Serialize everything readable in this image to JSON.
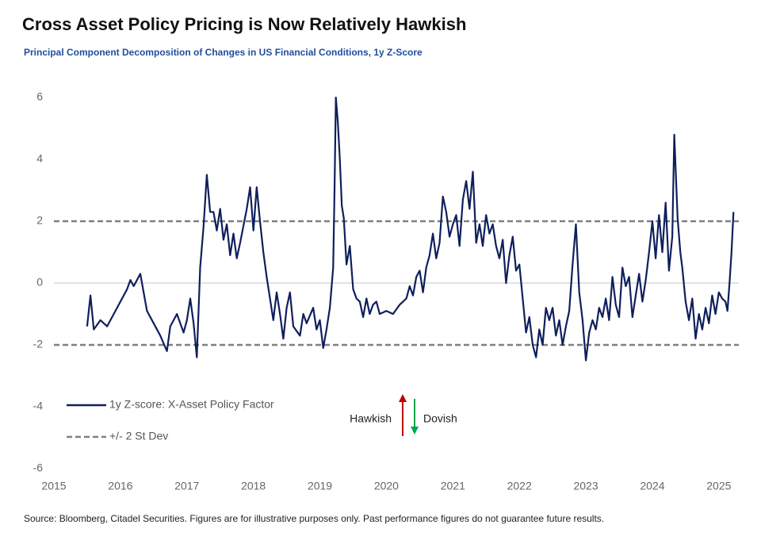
{
  "chart_data": {
    "type": "line",
    "title": "Cross Asset Policy Pricing is Now Relatively Hawkish",
    "subtitle": "Principal Component Decomposition of Changes in US Financial Conditions, 1y Z-Score",
    "source": "Source: Bloomberg, Citadel Securities. Figures are for illustrative purposes only. Past performance figures do not guarantee future results.",
    "annotations": [
      "Hawkish",
      "Dovish"
    ],
    "xlim": [
      2015,
      2025.3
    ],
    "xticks": [
      2015,
      2016,
      2017,
      2018,
      2019,
      2020,
      2021,
      2022,
      2023,
      2024,
      2025
    ],
    "ylim": [
      -6,
      6
    ],
    "yticks": [
      -6,
      -4,
      -2,
      0,
      2,
      4,
      6
    ],
    "reference_lines": {
      "name": "+/- 2 St Dev",
      "color": "#808080",
      "values": [
        2,
        -2
      ]
    },
    "x": [
      2015.5,
      2015.55,
      2015.6,
      2015.7,
      2015.8,
      2015.9,
      2016.0,
      2016.1,
      2016.15,
      2016.2,
      2016.3,
      2016.4,
      2016.5,
      2016.6,
      2016.7,
      2016.75,
      2016.85,
      2016.95,
      2017.0,
      2017.05,
      2017.1,
      2017.15,
      2017.2,
      2017.25,
      2017.3,
      2017.35,
      2017.4,
      2017.45,
      2017.5,
      2017.55,
      2017.6,
      2017.65,
      2017.7,
      2017.75,
      2017.8,
      2017.9,
      2017.95,
      2018.0,
      2018.05,
      2018.1,
      2018.15,
      2018.2,
      2018.25,
      2018.3,
      2018.35,
      2018.4,
      2018.45,
      2018.5,
      2018.55,
      2018.6,
      2018.7,
      2018.75,
      2018.8,
      2018.9,
      2018.95,
      2019.0,
      2019.05,
      2019.1,
      2019.15,
      2019.2,
      2019.22,
      2019.24,
      2019.27,
      2019.3,
      2019.33,
      2019.36,
      2019.4,
      2019.45,
      2019.5,
      2019.55,
      2019.6,
      2019.65,
      2019.7,
      2019.75,
      2019.8,
      2019.85,
      2019.9,
      2020.0,
      2020.1,
      2020.2,
      2020.3,
      2020.35,
      2020.4,
      2020.45,
      2020.5,
      2020.55,
      2020.6,
      2020.65,
      2020.7,
      2020.75,
      2020.8,
      2020.85,
      2020.9,
      2020.95,
      2021.0,
      2021.05,
      2021.1,
      2021.15,
      2021.2,
      2021.25,
      2021.3,
      2021.35,
      2021.4,
      2021.45,
      2021.5,
      2021.55,
      2021.6,
      2021.65,
      2021.7,
      2021.75,
      2021.8,
      2021.85,
      2021.9,
      2021.95,
      2022.0,
      2022.05,
      2022.1,
      2022.15,
      2022.2,
      2022.25,
      2022.3,
      2022.35,
      2022.4,
      2022.45,
      2022.5,
      2022.55,
      2022.6,
      2022.65,
      2022.7,
      2022.75,
      2022.8,
      2022.85,
      2022.9,
      2022.95,
      2023.0,
      2023.05,
      2023.1,
      2023.15,
      2023.2,
      2023.25,
      2023.3,
      2023.35,
      2023.4,
      2023.45,
      2023.5,
      2023.55,
      2023.6,
      2023.65,
      2023.7,
      2023.75,
      2023.8,
      2023.85,
      2023.9,
      2023.95,
      2024.0,
      2024.05,
      2024.1,
      2024.15,
      2024.2,
      2024.25,
      2024.3,
      2024.33,
      2024.38,
      2024.42,
      2024.45,
      2024.5,
      2024.55,
      2024.6,
      2024.65,
      2024.7,
      2024.75,
      2024.8,
      2024.85,
      2024.9,
      2024.95,
      2025.0,
      2025.05,
      2025.1,
      2025.13,
      2025.16,
      2025.19,
      2025.22
    ],
    "series": [
      {
        "name": "1y Z-score: X-Asset Policy Factor",
        "color": "#0f1f5c",
        "values": [
          -1.4,
          -0.4,
          -1.5,
          -1.2,
          -1.4,
          -1.0,
          -0.6,
          -0.2,
          0.1,
          -0.1,
          0.3,
          -0.9,
          -1.3,
          -1.7,
          -2.2,
          -1.4,
          -1.0,
          -1.6,
          -1.2,
          -0.5,
          -1.3,
          -2.4,
          0.5,
          1.8,
          3.5,
          2.3,
          2.3,
          1.7,
          2.4,
          1.4,
          1.9,
          0.9,
          1.6,
          0.8,
          1.3,
          2.4,
          3.1,
          1.7,
          3.1,
          2.0,
          1.0,
          0.2,
          -0.5,
          -1.2,
          -0.3,
          -1.0,
          -1.8,
          -0.8,
          -0.3,
          -1.4,
          -1.7,
          -1.0,
          -1.3,
          -0.8,
          -1.5,
          -1.2,
          -2.1,
          -1.5,
          -0.8,
          0.5,
          3.0,
          6.0,
          5.2,
          4.0,
          2.5,
          2.1,
          0.6,
          1.2,
          -0.2,
          -0.5,
          -0.6,
          -1.1,
          -0.5,
          -1.0,
          -0.7,
          -0.6,
          -1.0,
          -0.9,
          -1.0,
          -0.7,
          -0.5,
          -0.1,
          -0.4,
          0.2,
          0.4,
          -0.3,
          0.5,
          0.9,
          1.6,
          0.8,
          1.3,
          2.8,
          2.3,
          1.5,
          1.9,
          2.2,
          1.2,
          2.7,
          3.3,
          2.4,
          3.6,
          1.3,
          1.9,
          1.2,
          2.2,
          1.6,
          1.9,
          1.2,
          0.8,
          1.4,
          0.0,
          0.9,
          1.5,
          0.4,
          0.6,
          -0.5,
          -1.6,
          -1.1,
          -2.0,
          -2.4,
          -1.5,
          -2.0,
          -0.8,
          -1.2,
          -0.8,
          -1.7,
          -1.2,
          -2.0,
          -1.4,
          -0.9,
          0.6,
          1.9,
          -0.3,
          -1.2,
          -2.5,
          -1.6,
          -1.2,
          -1.5,
          -0.8,
          -1.1,
          -0.5,
          -1.2,
          0.2,
          -0.7,
          -1.1,
          0.5,
          -0.1,
          0.2,
          -1.1,
          -0.4,
          0.3,
          -0.6,
          0.1,
          1.0,
          2.0,
          0.8,
          2.2,
          1.0,
          2.6,
          0.4,
          1.5,
          4.8,
          2.1,
          1.0,
          0.5,
          -0.6,
          -1.2,
          -0.5,
          -1.8,
          -1.0,
          -1.5,
          -0.8,
          -1.3,
          -0.4,
          -1.0,
          -0.3,
          -0.5,
          -0.6,
          -0.9,
          0.0,
          1.0,
          2.3
        ]
      }
    ]
  }
}
